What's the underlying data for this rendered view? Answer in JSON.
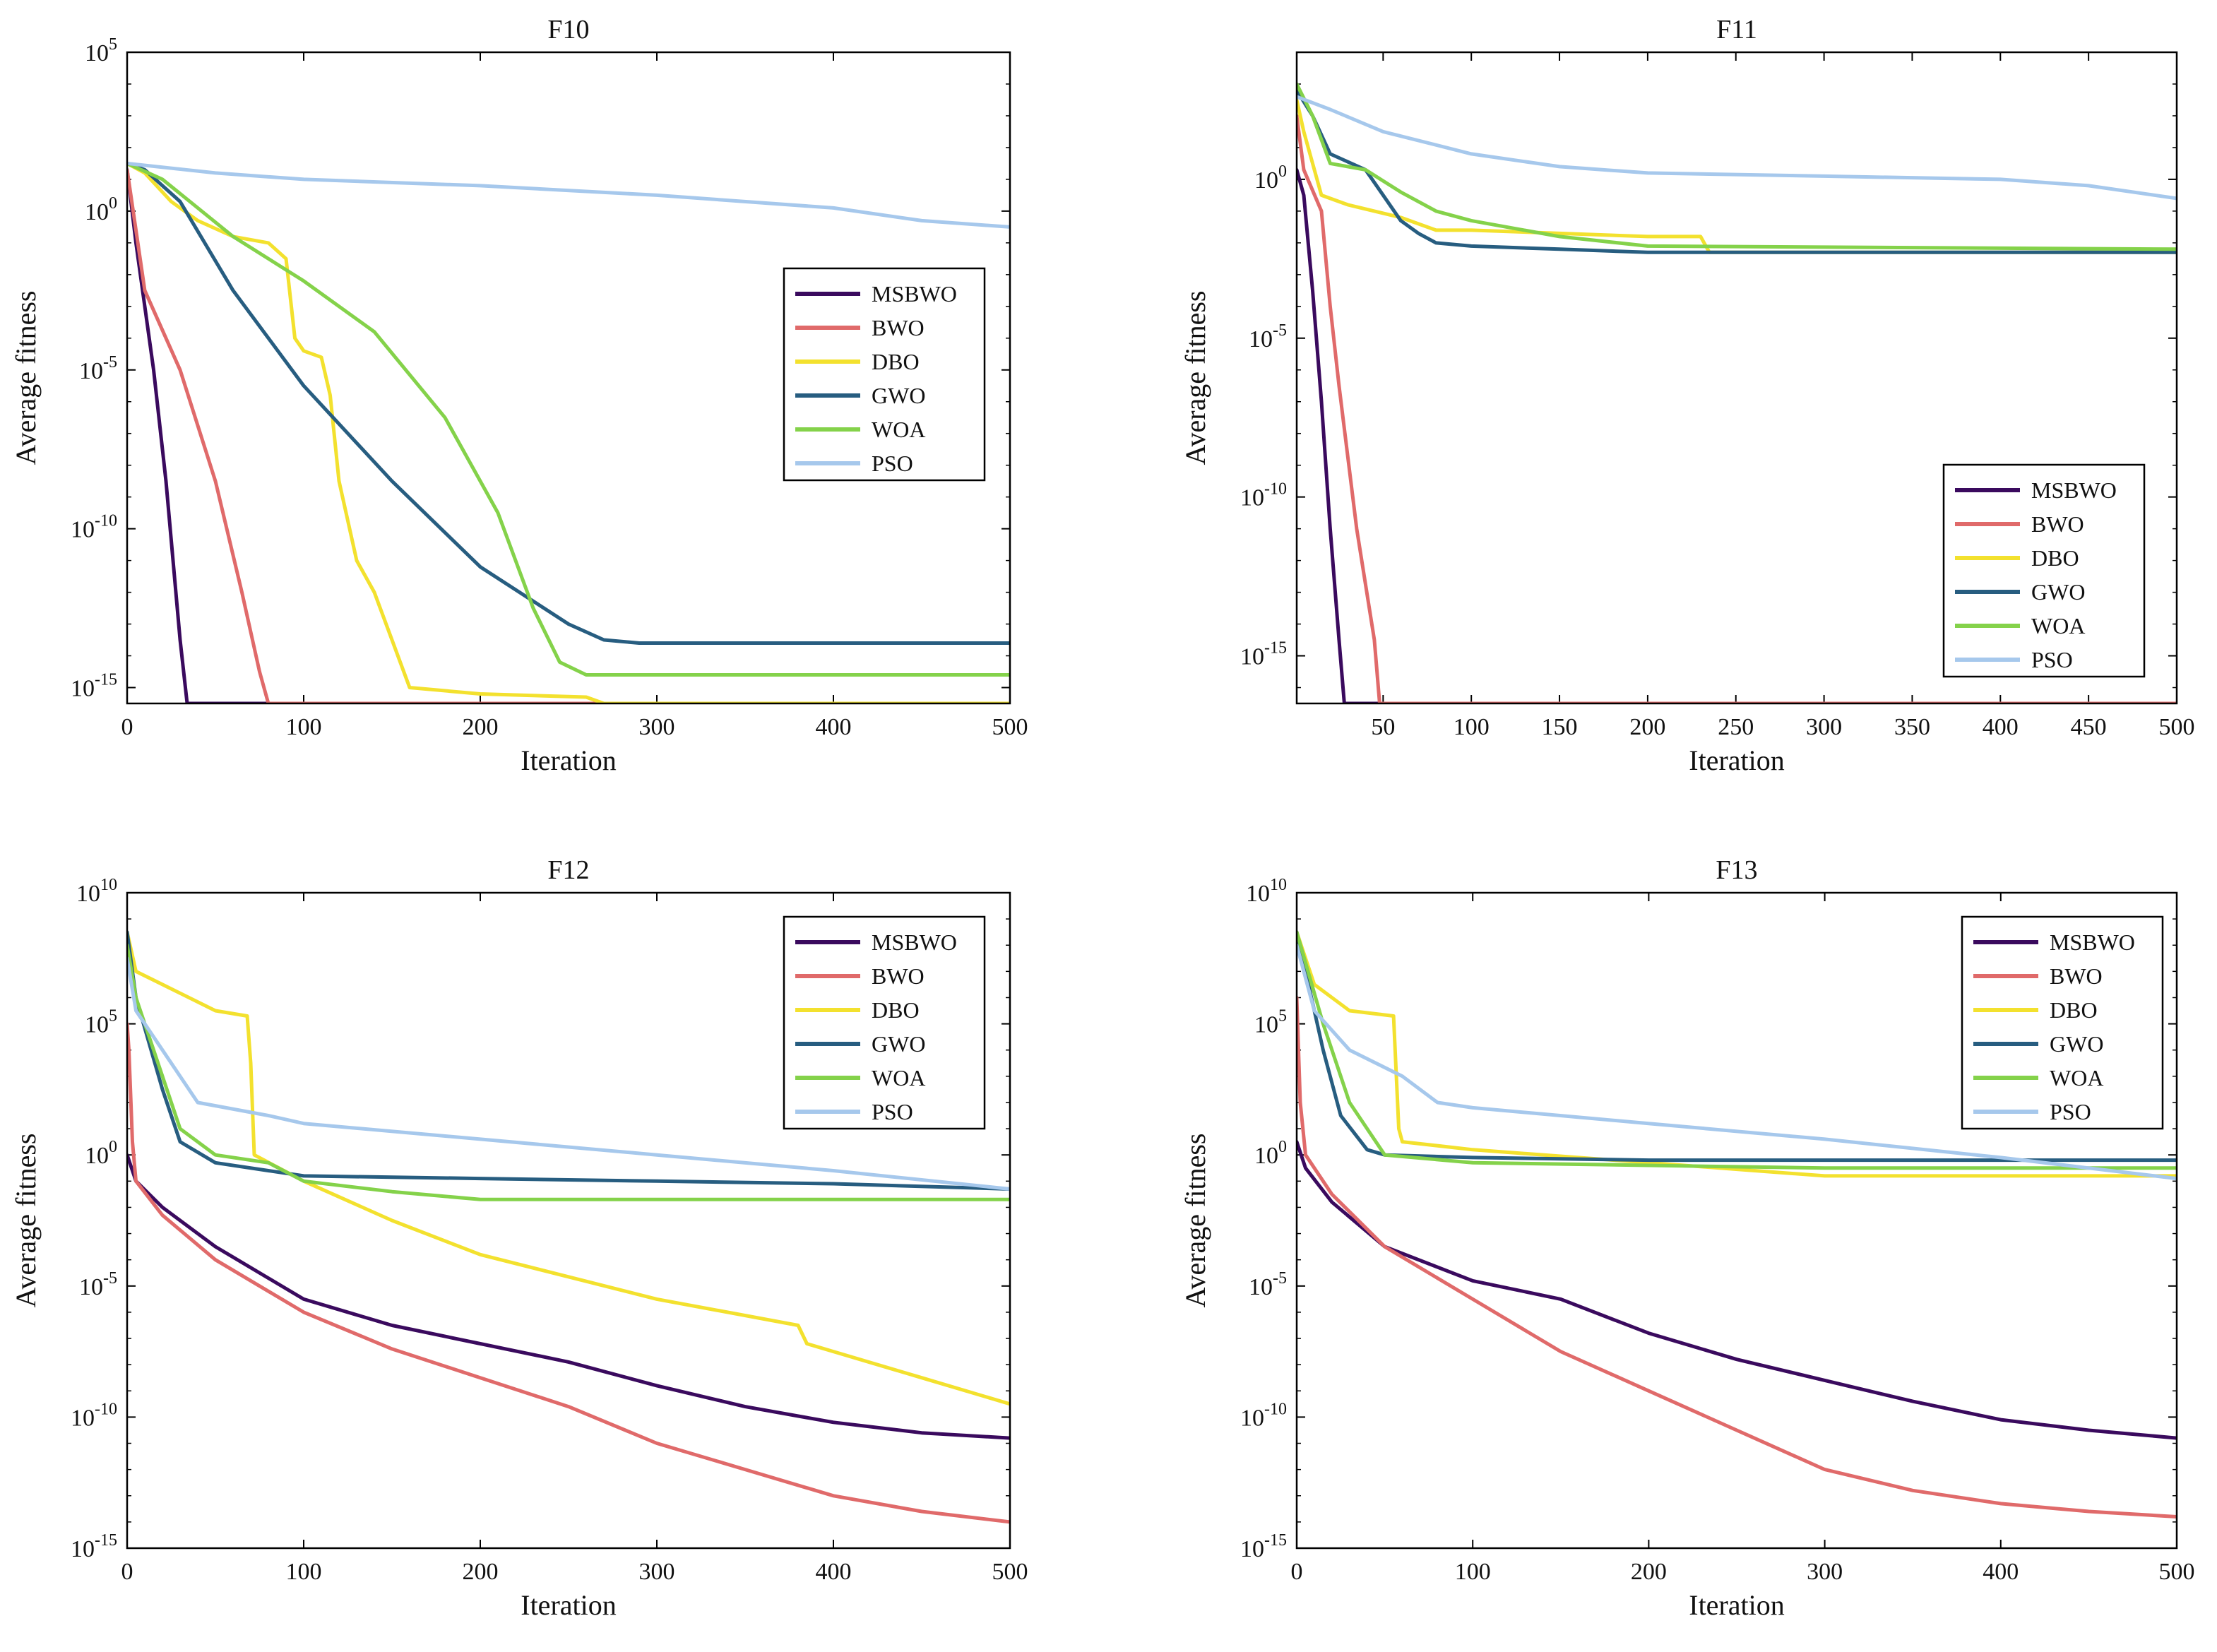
{
  "figure": "Convergence curves",
  "colors": {
    "MSBWO": "#3a0a5e",
    "BWO": "#e06a6a",
    "DBO": "#f3e12e",
    "GWO": "#275d80",
    "WOA": "#84d24a",
    "PSO": "#a6c8ec"
  },
  "chart_data": [
    {
      "type": "line",
      "title": "F10",
      "xlabel": "Iteration",
      "ylabel": "Average fitness",
      "yscale": "log",
      "xlim": [
        0,
        500
      ],
      "ylim_exp": [
        -15.5,
        5
      ],
      "xticks": [
        0,
        100,
        200,
        300,
        400,
        500
      ],
      "yticks_exp": [
        -15,
        -10,
        -5,
        0,
        5
      ],
      "legend": "right-middle",
      "series": [
        {
          "name": "MSBWO",
          "x": [
            0,
            5,
            15,
            22,
            30,
            34,
            500
          ],
          "log10_y": [
            1.3,
            -1.0,
            -5.0,
            -8.5,
            -13.5,
            -15.5,
            -15.5
          ]
        },
        {
          "name": "BWO",
          "x": [
            0,
            10,
            30,
            50,
            65,
            75,
            80,
            500
          ],
          "log10_y": [
            1.3,
            -2.5,
            -5.0,
            -8.5,
            -12.0,
            -14.5,
            -15.5,
            -15.5
          ]
        },
        {
          "name": "DBO",
          "x": [
            0,
            10,
            25,
            40,
            60,
            80,
            90,
            95,
            100,
            110,
            115,
            120,
            130,
            140,
            150,
            160,
            200,
            260,
            270,
            500
          ],
          "log10_y": [
            1.5,
            1.2,
            0.3,
            -0.3,
            -0.8,
            -1.0,
            -1.5,
            -4.0,
            -4.4,
            -4.6,
            -5.8,
            -8.5,
            -11.0,
            -12.0,
            -13.5,
            -15.0,
            -15.2,
            -15.3,
            -15.5,
            -15.5
          ]
        },
        {
          "name": "GWO",
          "x": [
            0,
            10,
            30,
            60,
            100,
            150,
            200,
            250,
            270,
            290,
            500
          ],
          "log10_y": [
            1.5,
            1.3,
            0.3,
            -2.5,
            -5.5,
            -8.5,
            -11.2,
            -13.0,
            -13.5,
            -13.6,
            -13.6
          ]
        },
        {
          "name": "WOA",
          "x": [
            0,
            20,
            60,
            100,
            140,
            180,
            210,
            230,
            245,
            260,
            500
          ],
          "log10_y": [
            1.5,
            1.0,
            -0.8,
            -2.2,
            -3.8,
            -6.5,
            -9.5,
            -12.5,
            -14.2,
            -14.6,
            -14.6
          ]
        },
        {
          "name": "PSO",
          "x": [
            0,
            50,
            100,
            200,
            300,
            400,
            450,
            500
          ],
          "log10_y": [
            1.5,
            1.2,
            1.0,
            0.8,
            0.5,
            0.1,
            -0.3,
            -0.5
          ]
        }
      ]
    },
    {
      "type": "line",
      "title": "F11",
      "xlabel": "Iteration",
      "ylabel": "Average fitness",
      "yscale": "log",
      "xlim": [
        1,
        500
      ],
      "ylim_exp": [
        -16.5,
        4
      ],
      "xticks": [
        50,
        100,
        150,
        200,
        250,
        300,
        350,
        400,
        450,
        500
      ],
      "yticks_exp": [
        -15,
        -10,
        -5,
        0
      ],
      "legend": "bottom-right",
      "series": [
        {
          "name": "MSBWO",
          "x": [
            1,
            5,
            10,
            15,
            20,
            25,
            28,
            500
          ],
          "log10_y": [
            0.3,
            -0.5,
            -3.5,
            -7.0,
            -11.0,
            -14.5,
            -16.5,
            -16.5
          ]
        },
        {
          "name": "BWO",
          "x": [
            1,
            5,
            15,
            20,
            25,
            35,
            45,
            48,
            500
          ],
          "log10_y": [
            2.0,
            0.3,
            -1.0,
            -4.0,
            -6.5,
            -11.0,
            -14.5,
            -16.5,
            -16.5
          ]
        },
        {
          "name": "DBO",
          "x": [
            1,
            5,
            15,
            30,
            60,
            80,
            100,
            150,
            200,
            230,
            235,
            500
          ],
          "log10_y": [
            2.5,
            1.5,
            -0.5,
            -0.8,
            -1.2,
            -1.6,
            -1.6,
            -1.7,
            -1.8,
            -1.8,
            -2.3,
            -2.3
          ]
        },
        {
          "name": "GWO",
          "x": [
            1,
            10,
            20,
            40,
            50,
            60,
            70,
            80,
            100,
            150,
            200,
            500
          ],
          "log10_y": [
            2.8,
            2.0,
            0.8,
            0.3,
            -0.5,
            -1.3,
            -1.7,
            -2.0,
            -2.1,
            -2.2,
            -2.3,
            -2.3
          ]
        },
        {
          "name": "WOA",
          "x": [
            1,
            10,
            20,
            40,
            60,
            80,
            100,
            150,
            200,
            500
          ],
          "log10_y": [
            3.0,
            2.0,
            0.5,
            0.3,
            -0.4,
            -1.0,
            -1.3,
            -1.8,
            -2.1,
            -2.2
          ]
        },
        {
          "name": "PSO",
          "x": [
            1,
            20,
            50,
            100,
            150,
            200,
            300,
            400,
            450,
            500
          ],
          "log10_y": [
            2.6,
            2.2,
            1.5,
            0.8,
            0.4,
            0.2,
            0.1,
            0.0,
            -0.2,
            -0.6
          ]
        }
      ]
    },
    {
      "type": "line",
      "title": "F12",
      "xlabel": "Iteration",
      "ylabel": "Average fitness",
      "yscale": "log",
      "xlim": [
        0,
        500
      ],
      "ylim_exp": [
        -15,
        10
      ],
      "xticks": [
        0,
        100,
        200,
        300,
        400,
        500
      ],
      "yticks_exp": [
        -15,
        -10,
        -5,
        0,
        5,
        10
      ],
      "legend": "top-right",
      "series": [
        {
          "name": "MSBWO",
          "x": [
            0,
            5,
            20,
            50,
            100,
            150,
            200,
            250,
            300,
            350,
            400,
            450,
            500
          ],
          "log10_y": [
            0.0,
            -1.0,
            -2.0,
            -3.5,
            -5.5,
            -6.5,
            -7.2,
            -7.9,
            -8.8,
            -9.6,
            -10.2,
            -10.6,
            -10.8
          ]
        },
        {
          "name": "BWO",
          "x": [
            0,
            1,
            3,
            5,
            20,
            50,
            100,
            150,
            200,
            250,
            300,
            350,
            400,
            450,
            500
          ],
          "log10_y": [
            5.0,
            4.0,
            0.5,
            -1.0,
            -2.3,
            -4.0,
            -6.0,
            -7.4,
            -8.5,
            -9.6,
            -11.0,
            -12.0,
            -13.0,
            -13.6,
            -14.0
          ]
        },
        {
          "name": "DBO",
          "x": [
            0,
            5,
            20,
            50,
            68,
            70,
            72,
            100,
            150,
            200,
            300,
            380,
            385,
            400,
            450,
            500
          ],
          "log10_y": [
            8.5,
            7.0,
            6.5,
            5.5,
            5.3,
            3.5,
            0.0,
            -1.0,
            -2.5,
            -3.8,
            -5.5,
            -6.5,
            -7.2,
            -7.5,
            -8.5,
            -9.5
          ]
        },
        {
          "name": "GWO",
          "x": [
            0,
            5,
            20,
            30,
            50,
            80,
            100,
            200,
            300,
            400,
            500
          ],
          "log10_y": [
            8.5,
            6.0,
            2.5,
            0.5,
            -0.3,
            -0.6,
            -0.8,
            -0.9,
            -1.0,
            -1.1,
            -1.3
          ]
        },
        {
          "name": "WOA",
          "x": [
            0,
            5,
            20,
            30,
            50,
            80,
            100,
            150,
            200,
            300,
            400,
            500
          ],
          "log10_y": [
            8.0,
            6.0,
            3.0,
            1.0,
            0.0,
            -0.3,
            -1.0,
            -1.4,
            -1.7,
            -1.7,
            -1.7,
            -1.7
          ]
        },
        {
          "name": "PSO",
          "x": [
            0,
            5,
            20,
            40,
            80,
            100,
            200,
            300,
            400,
            500
          ],
          "log10_y": [
            7.5,
            5.5,
            4.0,
            2.0,
            1.5,
            1.2,
            0.6,
            0.0,
            -0.6,
            -1.3
          ]
        }
      ]
    },
    {
      "type": "line",
      "title": "F13",
      "xlabel": "Iteration",
      "ylabel": "Average fitness",
      "yscale": "log",
      "xlim": [
        0,
        500
      ],
      "ylim_exp": [
        -15,
        10
      ],
      "xticks": [
        0,
        100,
        200,
        300,
        400,
        500
      ],
      "yticks_exp": [
        -15,
        -10,
        -5,
        0,
        5,
        10
      ],
      "legend": "top-right",
      "series": [
        {
          "name": "MSBWO",
          "x": [
            0,
            5,
            20,
            50,
            100,
            150,
            200,
            250,
            300,
            350,
            400,
            450,
            500
          ],
          "log10_y": [
            0.5,
            -0.5,
            -1.8,
            -3.5,
            -4.8,
            -5.5,
            -6.8,
            -7.8,
            -8.6,
            -9.4,
            -10.1,
            -10.5,
            -10.8
          ]
        },
        {
          "name": "BWO",
          "x": [
            0,
            2,
            5,
            20,
            50,
            100,
            150,
            200,
            250,
            300,
            350,
            400,
            450,
            500
          ],
          "log10_y": [
            6.0,
            2.0,
            0.0,
            -1.5,
            -3.5,
            -5.5,
            -7.5,
            -9.0,
            -10.5,
            -12.0,
            -12.8,
            -13.3,
            -13.6,
            -13.8
          ]
        },
        {
          "name": "DBO",
          "x": [
            0,
            10,
            30,
            55,
            58,
            60,
            100,
            200,
            300,
            400,
            500
          ],
          "log10_y": [
            8.5,
            6.5,
            5.5,
            5.3,
            1.0,
            0.5,
            0.2,
            -0.3,
            -0.8,
            -0.8,
            -0.8
          ]
        },
        {
          "name": "GWO",
          "x": [
            0,
            15,
            25,
            40,
            50,
            100,
            200,
            300,
            400,
            500
          ],
          "log10_y": [
            8.5,
            4.0,
            1.5,
            0.2,
            0.0,
            -0.1,
            -0.2,
            -0.2,
            -0.2,
            -0.2
          ]
        },
        {
          "name": "WOA",
          "x": [
            0,
            15,
            30,
            40,
            50,
            100,
            200,
            300,
            400,
            500
          ],
          "log10_y": [
            8.5,
            5.0,
            2.0,
            1.0,
            0.0,
            -0.3,
            -0.4,
            -0.5,
            -0.5,
            -0.5
          ]
        },
        {
          "name": "PSO",
          "x": [
            0,
            10,
            30,
            60,
            80,
            100,
            200,
            300,
            400,
            450,
            500
          ],
          "log10_y": [
            8.0,
            5.5,
            4.0,
            3.0,
            2.0,
            1.8,
            1.2,
            0.6,
            -0.1,
            -0.5,
            -0.9
          ]
        }
      ]
    }
  ]
}
